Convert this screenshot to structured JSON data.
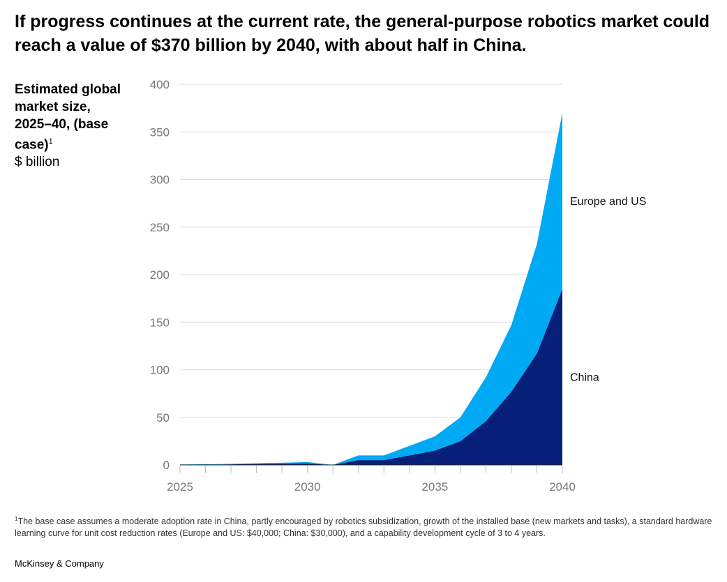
{
  "title": "If progress continues at the current rate, the general-purpose robotics market could reach a value of  $370 billion by 2040, with about half in China.",
  "ylabel": {
    "bold": "Estimated global market size, 2025–40, (base case)",
    "sup": "1",
    "unit": "$ billion"
  },
  "footnote": {
    "sup": "1",
    "text": "The base case assumes a moderate adoption rate in China, partly encouraged by robotics subsidization, growth of the installed base (new markets and tasks), a standard hardware learning curve for unit cost reduction rates (Europe and US: $40,000; China: $30,000), and a capability development cycle of 3 to 4 years."
  },
  "brand": "McKinsey & Company",
  "chart_data": {
    "type": "area",
    "stacked": true,
    "x": [
      2025,
      2026,
      2027,
      2028,
      2029,
      2030,
      2031,
      2032,
      2033,
      2034,
      2035,
      2036,
      2037,
      2038,
      2039,
      2040
    ],
    "series": [
      {
        "name": "China",
        "color": "#06207a",
        "values": [
          0.3,
          0.4,
          0.6,
          1,
          1.3,
          1.5,
          0,
          5,
          5,
          10,
          15,
          25,
          46,
          77,
          117,
          185
        ]
      },
      {
        "name": "Europe and US",
        "color": "#00a9f4",
        "values": [
          0.2,
          0.3,
          0.5,
          0.7,
          1,
          1.5,
          0,
          5,
          5,
          10,
          15,
          25,
          46,
          70,
          115,
          185
        ]
      }
    ],
    "ylim": [
      0,
      400
    ],
    "yticks": [
      0,
      50,
      100,
      150,
      200,
      250,
      300,
      350,
      400
    ],
    "xticks": [
      2025,
      2030,
      2035,
      2040
    ],
    "grid": true,
    "legend": "direct labels at right"
  }
}
